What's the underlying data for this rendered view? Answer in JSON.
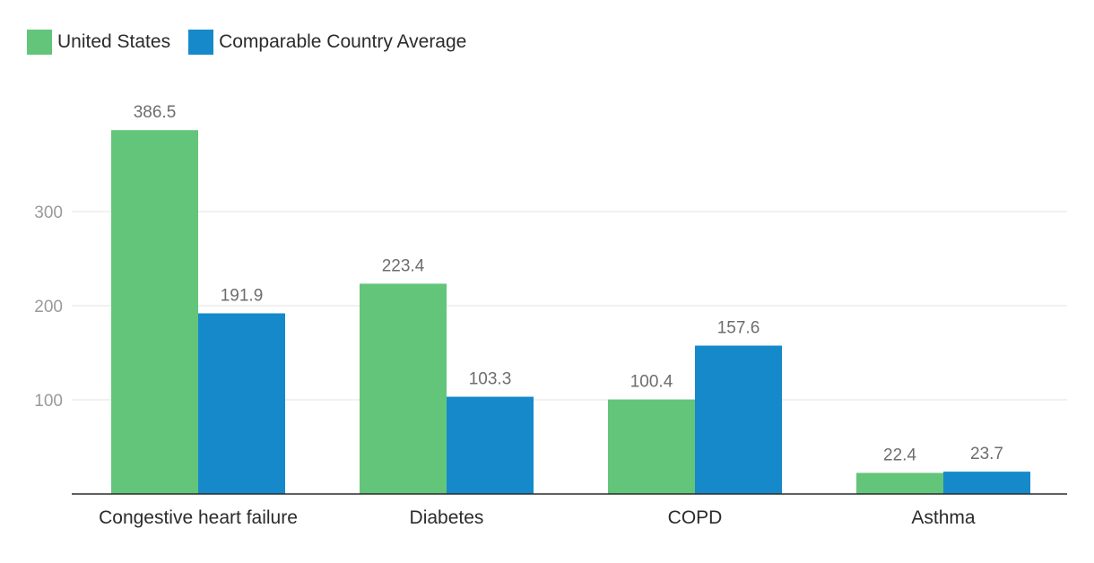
{
  "chart_data": {
    "type": "bar",
    "categories": [
      "Congestive heart failure",
      "Diabetes",
      "COPD",
      "Asthma"
    ],
    "series": [
      {
        "name": "United States",
        "color": "#63c57a",
        "values": [
          386.5,
          223.4,
          100.4,
          22.4
        ]
      },
      {
        "name": "Comparable Country Average",
        "color": "#1689cb",
        "values": [
          191.9,
          103.3,
          157.6,
          23.7
        ]
      }
    ],
    "yticks": [
      100,
      200,
      300
    ],
    "ylim": [
      0,
      400
    ],
    "grid": true,
    "legend_position": "top-left",
    "title": "",
    "xlabel": "",
    "ylabel": ""
  }
}
